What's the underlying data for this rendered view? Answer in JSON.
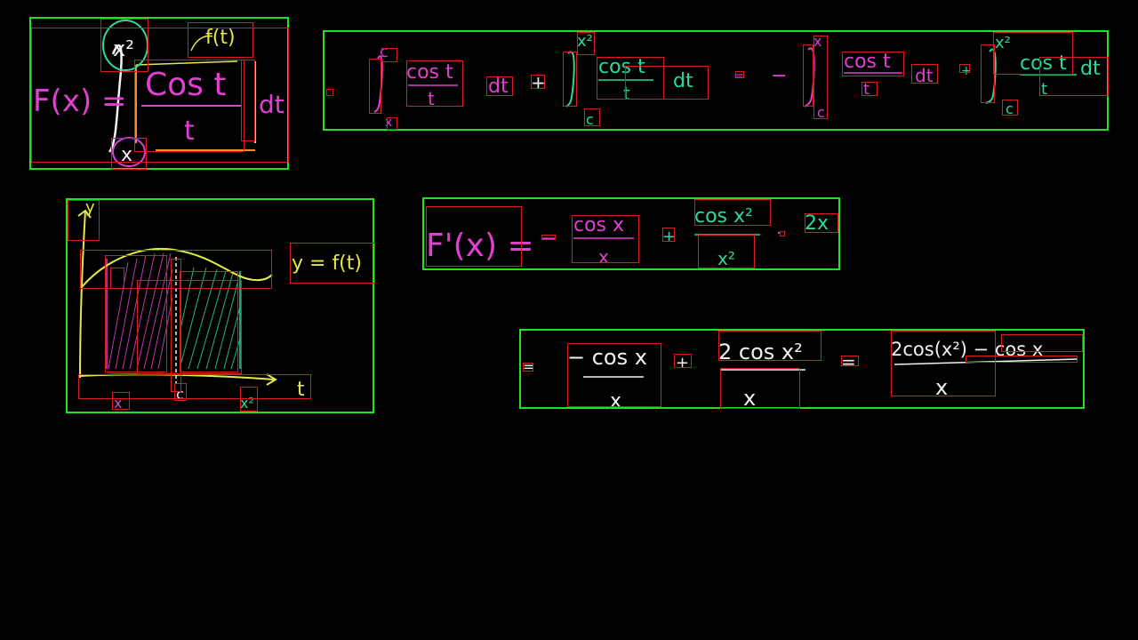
{
  "colors": {
    "panel": "#22e022",
    "bbox": "#d81b1b",
    "pink": "#e040d0",
    "teal": "#2bd99a",
    "yellow": "#e6e84a",
    "white": "#f2f2f2",
    "orange": "#f0902a"
  },
  "panel1": {
    "lhs": "F(x) =",
    "upper": "x²",
    "lower": "x",
    "numerator": "Cos t",
    "denominator": "t",
    "annotation": "f(t)",
    "dt": "dt"
  },
  "panel2": {
    "t1_upper": "c",
    "t1_lower": "x",
    "t1_num": "cos t",
    "t1_den": "t",
    "t1_dt": "dt",
    "plus": "+",
    "t2_upper": "x²",
    "t2_lower": "c",
    "t2_num": "cos t",
    "t2_den": "t",
    "t2_dt": "dt",
    "eq": "=",
    "minus": "−",
    "t3_upper": "x",
    "t3_lower": "c",
    "t3_num": "cos t",
    "t3_den": "t",
    "t3_dt": "dt",
    "plus2": "+",
    "t4_upper": "x²",
    "t4_lower": "c",
    "t4_num": "cos t",
    "t4_den": "t",
    "t4_dt": "dt"
  },
  "panel3": {
    "y_axis": "y",
    "curve_label": "y = f(t)",
    "t_axis": "t",
    "tick_x": "x",
    "tick_c": "c",
    "tick_x2": "x²"
  },
  "panel4": {
    "lhs": "F'(x) =",
    "minus": "−",
    "num1": "cos x",
    "den1": "x",
    "plus": "+",
    "num2": "cos x²",
    "den2": "x²",
    "dot": "·",
    "factor": "2x"
  },
  "panel5": {
    "eq1": "=",
    "num1": "− cos x",
    "den1": "x",
    "plus": "+",
    "num2": "2 cos x²",
    "den2": "x",
    "eq2": "=",
    "num3": "2cos(x²) − cos x",
    "den3": "x"
  }
}
